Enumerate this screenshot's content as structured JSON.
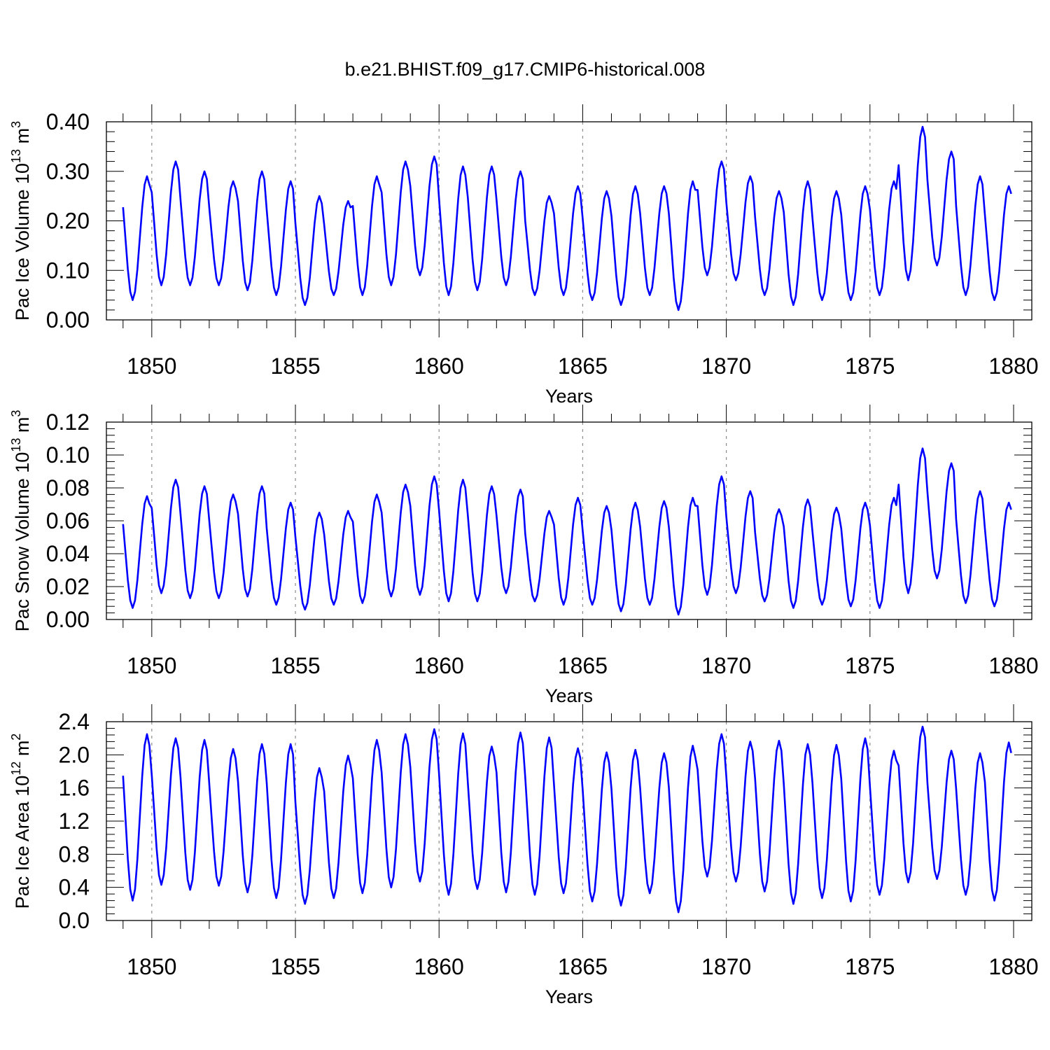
{
  "title": "b.e21.BHIST.f09_g17.CMIP6-historical.008",
  "colors": {
    "line": "#0000ff",
    "axis": "#000000",
    "grid": "#8c8c8c"
  },
  "chart_data": [
    {
      "type": "line",
      "series_name": "Pac Ice Volume",
      "ylabel": {
        "main": "Pac Ice Volume 10",
        "exp": "13",
        "mid": " m",
        "unit_exp": "3"
      },
      "xlabel": "Years",
      "xlim": [
        1849,
        1880
      ],
      "xticks": [
        "1850",
        "1855",
        "1860",
        "1865",
        "1870",
        "1875",
        "1880"
      ],
      "ylim": [
        0.0,
        0.4
      ],
      "yticks": [
        "0.00",
        "0.10",
        "0.20",
        "0.30",
        "0.40"
      ],
      "ytick_values": [
        0.0,
        0.1,
        0.2,
        0.3,
        0.4
      ],
      "gridlines_x": [
        1850,
        1855,
        1860,
        1865,
        1870,
        1875
      ],
      "seasonal_cycle": {
        "min": 0.04,
        "max": 0.29
      },
      "annual_max": [
        0.29,
        0.32,
        0.3,
        0.28,
        0.3,
        0.28,
        0.25,
        0.24,
        0.29,
        0.32,
        0.33,
        0.31,
        0.31,
        0.3,
        0.25,
        0.27,
        0.26,
        0.27,
        0.27,
        0.28,
        0.32,
        0.29,
        0.26,
        0.28,
        0.26,
        0.27,
        0.28,
        0.39,
        0.34,
        0.29,
        0.27
      ],
      "annual_min": [
        0.04,
        0.07,
        0.07,
        0.07,
        0.06,
        0.05,
        0.03,
        0.05,
        0.05,
        0.07,
        0.09,
        0.05,
        0.06,
        0.07,
        0.05,
        0.05,
        0.04,
        0.03,
        0.05,
        0.02,
        0.09,
        0.08,
        0.05,
        0.03,
        0.04,
        0.04,
        0.05,
        0.08,
        0.11,
        0.05,
        0.04
      ]
    },
    {
      "type": "line",
      "series_name": "Pac Snow Volume",
      "ylabel": {
        "main": "Pac Snow Volume 10",
        "exp": "13",
        "mid": " m",
        "unit_exp": "3"
      },
      "xlabel": "Years",
      "xlim": [
        1849,
        1880
      ],
      "xticks": [
        "1850",
        "1855",
        "1860",
        "1865",
        "1870",
        "1875",
        "1880"
      ],
      "ylim": [
        0.0,
        0.12
      ],
      "yticks": [
        "0.00",
        "0.02",
        "0.04",
        "0.06",
        "0.08",
        "0.10",
        "0.12"
      ],
      "ytick_values": [
        0.0,
        0.02,
        0.04,
        0.06,
        0.08,
        0.1,
        0.12
      ],
      "gridlines_x": [
        1850,
        1855,
        1860,
        1865,
        1870,
        1875
      ],
      "seasonal_cycle": {
        "min": 0.01,
        "max": 0.075
      },
      "annual_max": [
        0.075,
        0.085,
        0.081,
        0.076,
        0.081,
        0.071,
        0.065,
        0.066,
        0.076,
        0.082,
        0.087,
        0.085,
        0.081,
        0.079,
        0.066,
        0.074,
        0.069,
        0.071,
        0.072,
        0.074,
        0.087,
        0.078,
        0.067,
        0.073,
        0.068,
        0.071,
        0.074,
        0.104,
        0.095,
        0.078,
        0.071
      ],
      "annual_min": [
        0.007,
        0.016,
        0.013,
        0.013,
        0.014,
        0.009,
        0.006,
        0.009,
        0.01,
        0.014,
        0.015,
        0.011,
        0.011,
        0.016,
        0.011,
        0.009,
        0.009,
        0.005,
        0.009,
        0.003,
        0.015,
        0.016,
        0.011,
        0.007,
        0.009,
        0.008,
        0.007,
        0.016,
        0.025,
        0.01,
        0.008
      ]
    },
    {
      "type": "line",
      "series_name": "Pac Ice Area",
      "ylabel": {
        "main": "Pac Ice Area 10",
        "exp": "12",
        "mid": " m",
        "unit_exp": "2"
      },
      "xlabel": "Years",
      "xlim": [
        1849,
        1880
      ],
      "xticks": [
        "1850",
        "1855",
        "1860",
        "1865",
        "1870",
        "1875",
        "1880"
      ],
      "ylim": [
        0.0,
        2.4
      ],
      "yticks": [
        "0.0",
        "0.4",
        "0.8",
        "1.2",
        "1.6",
        "2.0",
        "2.4"
      ],
      "ytick_values": [
        0.0,
        0.4,
        0.8,
        1.2,
        1.6,
        2.0,
        2.4
      ],
      "gridlines_x": [
        1850,
        1855,
        1860,
        1865,
        1870,
        1875
      ],
      "seasonal_cycle": {
        "min": 0.3,
        "max": 2.2
      },
      "annual_max": [
        2.25,
        2.2,
        2.18,
        2.07,
        2.13,
        2.13,
        1.84,
        1.99,
        2.18,
        2.25,
        2.31,
        2.26,
        2.1,
        2.27,
        2.21,
        2.08,
        2.03,
        2.06,
        2.02,
        2.11,
        2.25,
        2.16,
        2.17,
        2.13,
        2.12,
        2.2,
        2.05,
        2.34,
        2.05,
        2.02,
        2.15
      ],
      "annual_min": [
        0.24,
        0.43,
        0.37,
        0.42,
        0.34,
        0.27,
        0.2,
        0.27,
        0.33,
        0.4,
        0.47,
        0.31,
        0.38,
        0.34,
        0.31,
        0.33,
        0.23,
        0.18,
        0.33,
        0.1,
        0.53,
        0.47,
        0.35,
        0.2,
        0.27,
        0.23,
        0.31,
        0.46,
        0.5,
        0.31,
        0.24
      ]
    }
  ]
}
